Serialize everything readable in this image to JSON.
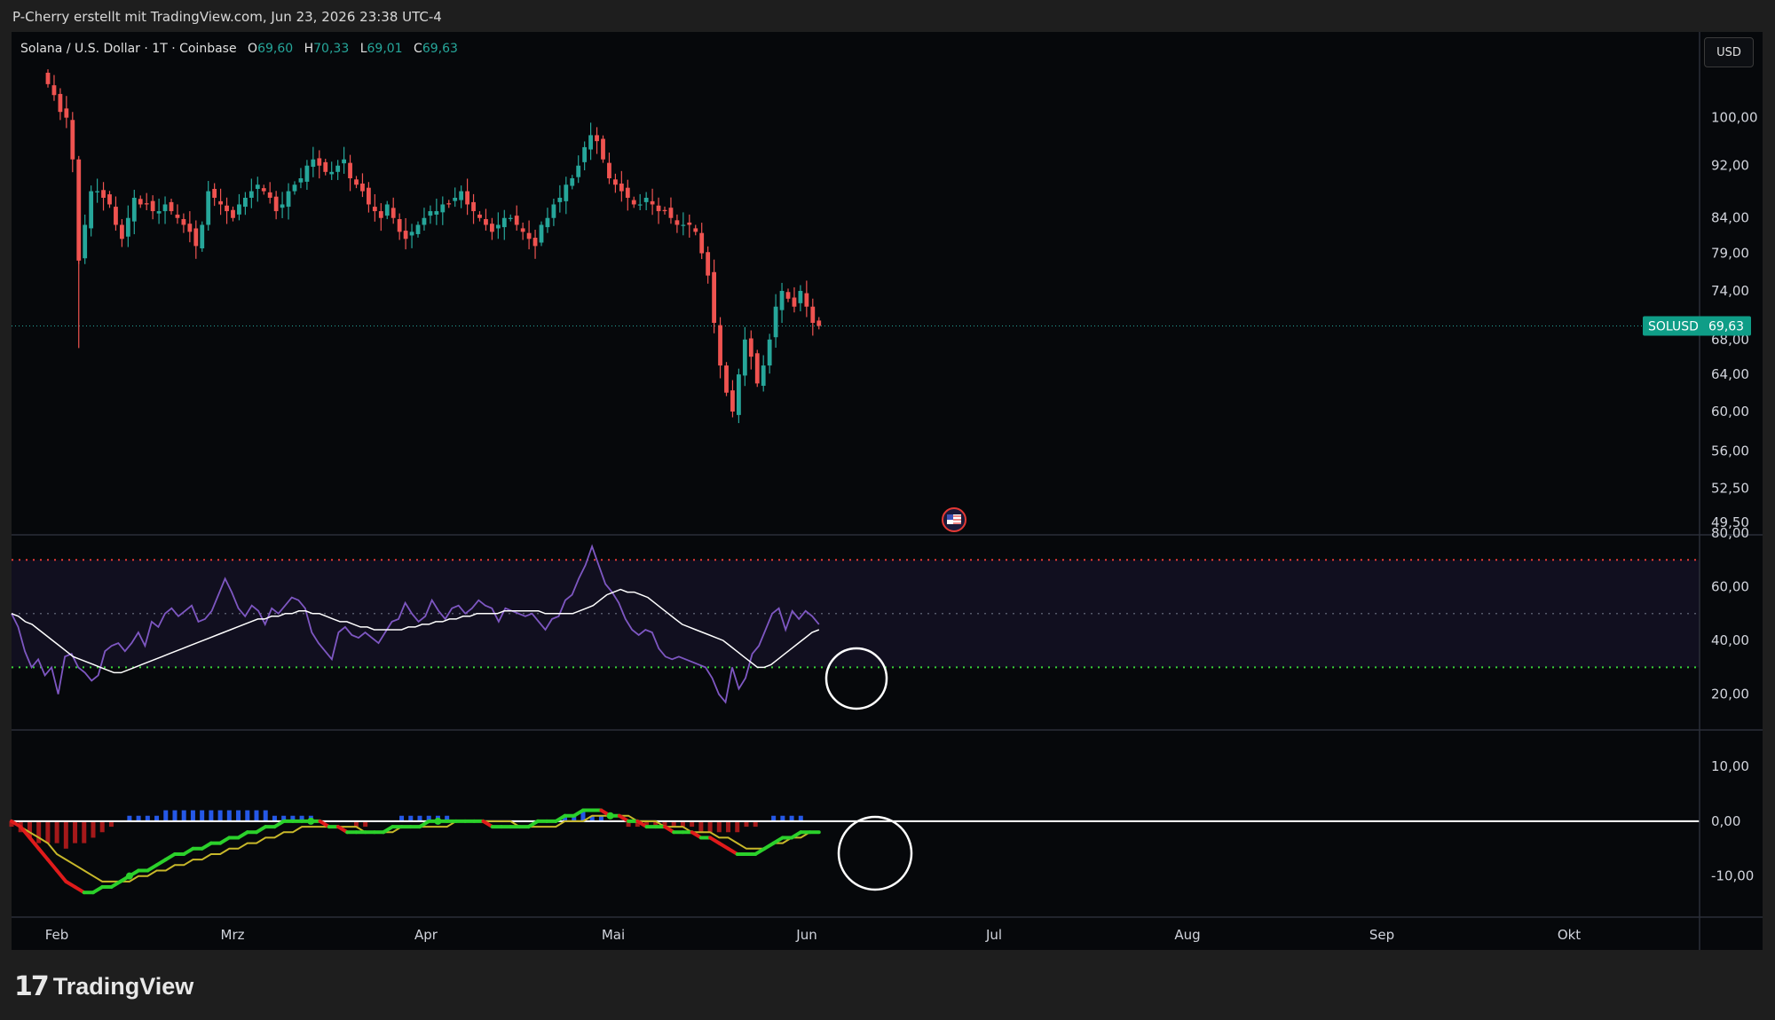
{
  "header": {
    "attribution": "P-Cherry erstellt mit TradingView.com, Jun 23, 2026 23:38 UTC-4"
  },
  "legend": {
    "symbol": "Solana / U.S. Dollar · 1T · Coinbase",
    "open_label": "O",
    "open": "69,60",
    "high_label": "H",
    "high": "70,33",
    "low_label": "L",
    "low": "69,01",
    "close_label": "C",
    "close": "69,63"
  },
  "currency_button": "USD",
  "price_tag": {
    "symbol": "SOLUSD",
    "value": "69,63"
  },
  "brand": {
    "name": "TradingView",
    "logo_glyph": "17"
  },
  "colors": {
    "up": "#26a69a",
    "down": "#ef5350",
    "rsi": "#7e57c2",
    "rsi_ma": "#ffffff",
    "macd_up": "#2bd12b",
    "macd_down": "#e01b1b",
    "signal": "#c8b82a",
    "overbought": "#e53935",
    "oversold": "#3ad43a",
    "price_tag_bg": "#0f9d87"
  },
  "chart_data": [
    {
      "type": "candlestick",
      "title": "",
      "y_scale": "log",
      "y_ticks": [
        "100,00",
        "92,00",
        "84,00",
        "79,00",
        "74,00",
        "68,00",
        "64,00",
        "60,00",
        "56,00",
        "52,50",
        "49,50"
      ],
      "y_tick_values": [
        100,
        92,
        84,
        79,
        74,
        68,
        64,
        60,
        56,
        52.5,
        49.5
      ],
      "x_ticks": [
        "Feb",
        "Mrz",
        "Apr",
        "Mai",
        "Jun",
        "Jul",
        "Aug",
        "Sep",
        "Okt"
      ],
      "ylim": [
        48.5,
        115
      ],
      "last_price": 69.63,
      "closes": [
        106,
        104,
        101,
        100,
        93,
        78,
        83,
        88,
        88,
        87,
        86,
        83,
        81,
        84,
        87,
        86,
        86,
        85,
        85,
        86,
        85,
        84,
        83,
        82,
        80,
        83,
        88,
        87,
        86,
        85,
        84,
        86,
        87,
        88,
        89,
        88,
        87,
        85,
        86,
        88,
        89,
        90,
        92,
        93,
        92,
        91,
        91,
        92,
        93,
        90,
        89,
        88,
        86,
        85,
        84,
        86,
        84,
        82,
        81,
        82,
        83,
        84,
        85,
        85,
        86,
        86,
        87,
        88,
        86,
        85,
        84,
        83,
        82,
        83,
        84,
        84,
        83,
        82,
        81,
        80,
        83,
        84,
        86,
        87,
        89,
        90,
        92,
        95,
        97,
        96,
        93,
        90,
        89,
        88,
        87,
        86,
        86,
        87,
        86,
        85,
        85,
        84,
        83,
        83,
        83,
        82,
        79,
        76,
        70,
        65,
        62,
        60,
        64,
        68,
        66,
        63,
        65,
        68,
        72,
        74,
        73,
        72,
        74,
        72,
        70,
        69.63
      ]
    },
    {
      "type": "line",
      "title": "",
      "y_ticks": [
        "80,00",
        "60,00",
        "40,00",
        "20,00"
      ],
      "y_tick_values": [
        80,
        60,
        40,
        20
      ],
      "ylim": [
        7,
        79
      ],
      "levels": {
        "overbought": 70,
        "middle": 50,
        "oversold": 30
      },
      "series": [
        {
          "values": [
            50,
            45,
            36,
            30,
            33,
            27,
            30,
            20,
            34,
            35,
            30,
            28,
            25,
            27,
            36,
            38,
            39,
            36,
            39,
            43,
            38,
            47,
            45,
            50,
            52,
            49,
            51,
            53,
            47,
            48,
            51,
            57,
            63,
            58,
            52,
            49,
            53,
            51,
            46,
            52,
            50,
            53,
            56,
            55,
            52,
            43,
            39,
            36,
            33,
            43,
            45,
            42,
            41,
            43,
            41,
            39,
            43,
            47,
            48,
            54,
            50,
            47,
            49,
            55,
            51,
            48,
            52,
            53,
            50,
            52,
            55,
            53,
            52,
            47,
            52,
            51,
            50,
            49,
            50,
            47,
            44,
            48,
            49,
            55,
            57,
            63,
            68,
            75,
            68,
            61,
            58,
            54,
            48,
            44,
            42,
            44,
            43,
            37,
            34,
            33,
            34,
            33,
            32,
            31,
            30,
            26,
            20,
            17,
            30,
            22,
            26,
            35,
            38,
            44,
            50,
            52,
            44,
            51,
            48,
            51,
            49,
            46
          ]
        },
        {
          "values": [
            50,
            49,
            47,
            46,
            44,
            42,
            40,
            38,
            36,
            34,
            33,
            32,
            31,
            30,
            29,
            28,
            28,
            29,
            30,
            31,
            32,
            33,
            34,
            35,
            36,
            37,
            38,
            39,
            40,
            41,
            42,
            43,
            44,
            45,
            46,
            47,
            48,
            48,
            49,
            49,
            50,
            50,
            51,
            51,
            50,
            50,
            49,
            48,
            47,
            47,
            46,
            45,
            45,
            44,
            44,
            44,
            44,
            44,
            45,
            45,
            46,
            46,
            47,
            47,
            48,
            48,
            49,
            49,
            50,
            50,
            50,
            50,
            51,
            51,
            51,
            51,
            51,
            51,
            50,
            50,
            50,
            50,
            50,
            51,
            52,
            53,
            55,
            57,
            58,
            59,
            58,
            58,
            57,
            56,
            54,
            52,
            50,
            48,
            46,
            45,
            44,
            43,
            42,
            41,
            40,
            38,
            36,
            34,
            32,
            30,
            30,
            31,
            33,
            35,
            37,
            39,
            41,
            43,
            44
          ]
        }
      ]
    },
    {
      "type": "line",
      "title": "",
      "y_ticks": [
        "10,00",
        "0,00",
        "-10,00"
      ],
      "y_tick_values": [
        10,
        0,
        -10
      ],
      "ylim": [
        -17.5,
        16.5
      ],
      "series": [
        {
          "values": [
            0,
            -1,
            -3,
            -5,
            -7,
            -9,
            -11,
            -12,
            -13,
            -13,
            -12,
            -12,
            -11,
            -10,
            -9,
            -9,
            -8,
            -7,
            -6,
            -6,
            -5,
            -5,
            -4,
            -4,
            -3,
            -3,
            -2,
            -2,
            -1,
            -1,
            0,
            0,
            0,
            0,
            0,
            -1,
            -1,
            -2,
            -2,
            -2,
            -2,
            -2,
            -1,
            -1,
            -1,
            -1,
            0,
            0,
            0,
            0,
            0,
            0,
            0,
            -1,
            -1,
            -1,
            -1,
            -1,
            0,
            0,
            0,
            1,
            1,
            2,
            2,
            2,
            1,
            1,
            0,
            0,
            -1,
            -1,
            -1,
            -2,
            -2,
            -2,
            -3,
            -3,
            -4,
            -5,
            -6,
            -6,
            -6,
            -5,
            -4,
            -3,
            -3,
            -2,
            -2,
            -2
          ]
        },
        {
          "values": [
            0,
            -1,
            -2,
            -3,
            -4,
            -6,
            -7,
            -8,
            -9,
            -10,
            -11,
            -11,
            -11,
            -11,
            -10,
            -10,
            -9,
            -9,
            -8,
            -8,
            -7,
            -7,
            -6,
            -6,
            -5,
            -5,
            -4,
            -4,
            -3,
            -3,
            -2,
            -2,
            -1,
            -1,
            -1,
            -1,
            -1,
            -1,
            -1,
            -2,
            -2,
            -2,
            -2,
            -1,
            -1,
            -1,
            -1,
            -1,
            -1,
            0,
            0,
            0,
            0,
            0,
            0,
            0,
            -1,
            -1,
            -1,
            -1,
            -1,
            0,
            0,
            0,
            1,
            1,
            1,
            1,
            1,
            0,
            0,
            0,
            -1,
            -1,
            -1,
            -2,
            -2,
            -2,
            -3,
            -3,
            -4,
            -5,
            -5,
            -5,
            -4,
            -4,
            -3,
            -3,
            -2,
            -2
          ]
        },
        {
          "values": [
            -1,
            -2,
            -3,
            -4,
            -4,
            -4,
            -5,
            -4,
            -4,
            -3,
            -2,
            -1,
            0,
            1,
            1,
            1,
            1,
            2,
            2,
            2,
            2,
            2,
            2,
            2,
            2,
            2,
            2,
            2,
            2,
            1,
            1,
            1,
            1,
            1,
            0,
            0,
            0,
            0,
            -1,
            -1,
            0,
            0,
            0,
            1,
            1,
            1,
            1,
            1,
            1,
            0,
            0,
            0,
            0,
            0,
            0,
            0,
            0,
            0,
            0,
            0,
            0,
            1,
            1,
            2,
            1,
            1,
            0,
            0,
            -1,
            -1,
            -1,
            -1,
            -1,
            -1,
            -1,
            -1,
            -2,
            -2,
            -2,
            -2,
            -2,
            -1,
            -1,
            0,
            1,
            1,
            1,
            1,
            0,
            0
          ]
        }
      ]
    }
  ]
}
